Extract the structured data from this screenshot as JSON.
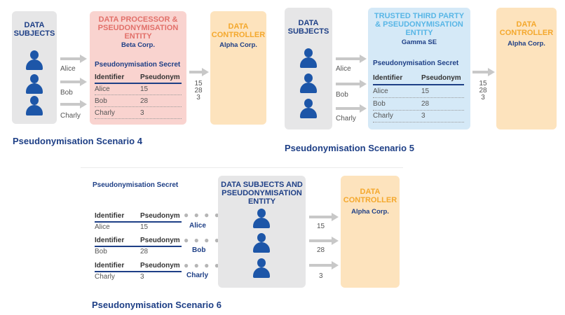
{
  "scenario4": {
    "title": "Pseudonymisation Scenario 4",
    "subjects_heading": [
      "DATA",
      "SUBJECTS"
    ],
    "processor_heading": [
      "DATA PROCESSOR &",
      "PSEUDONYMISATION",
      "ENTITY"
    ],
    "processor_name": "Beta Corp.",
    "controller_heading": [
      "DATA",
      "CONTROLLER"
    ],
    "controller_name": "Alpha Corp.",
    "secret_label": "Pseudonymisation Secret",
    "col_identifier": "Identifier",
    "col_pseudonym": "Pseudonym",
    "rows": [
      [
        "Alice",
        "15"
      ],
      [
        "Bob",
        "28"
      ],
      [
        "Charly",
        "3"
      ]
    ],
    "arrow_labels": [
      "Alice",
      "Bob",
      "Charly"
    ],
    "out_values": [
      "15",
      "28",
      "3"
    ]
  },
  "scenario5": {
    "title": "Pseudonymisation Scenario 5",
    "subjects_heading": [
      "DATA",
      "SUBJECTS"
    ],
    "third_heading": [
      "TRUSTED THIRD PARTY",
      "& PSEUDONYMISATION",
      "ENTITY"
    ],
    "third_name": "Gamma SE",
    "controller_heading": [
      "DATA",
      "CONTROLLER"
    ],
    "controller_name": "Alpha Corp.",
    "secret_label": "Pseudonymisation Secret",
    "col_identifier": "Identifier",
    "col_pseudonym": "Pseudonym",
    "rows": [
      [
        "Alice",
        "15"
      ],
      [
        "Bob",
        "28"
      ],
      [
        "Charly",
        "3"
      ]
    ],
    "arrow_labels": [
      "Alice",
      "Bob",
      "Charly"
    ],
    "out_values": [
      "15",
      "28",
      "3"
    ]
  },
  "scenario6": {
    "title": "Pseudonymisation Scenario 6",
    "secret_label": "Pseudonymisation Secret",
    "entity_heading": [
      "DATA SUBJECTS AND",
      "PSEUDONYMISATION",
      "ENTITY"
    ],
    "controller_heading": [
      "DATA",
      "CONTROLLER"
    ],
    "controller_name": "Alpha Corp.",
    "col_identifier": "Identifier",
    "col_pseudonym": "Pseudonym",
    "rows": [
      [
        "Alice",
        "15"
      ],
      [
        "Bob",
        "28"
      ],
      [
        "Charly",
        "3"
      ]
    ],
    "link_labels": [
      "Alice",
      "Bob",
      "Charly"
    ],
    "out_values": [
      "15",
      "28",
      "3"
    ]
  },
  "colors": {
    "navy": "#1e3f86",
    "person": "#1d56a8",
    "processor_box": "#f9d3cf",
    "processor_text": "#e2706a",
    "controller_box": "#fde3bd",
    "controller_text": "#f4a82d",
    "third_box": "#d5e9f7",
    "third_text": "#58b6e6",
    "subjects_box": "#e6e6e7",
    "arrow": "#c8c8c8"
  },
  "icons": [
    "person-icon",
    "arrow-right-icon",
    "dotted-link"
  ]
}
